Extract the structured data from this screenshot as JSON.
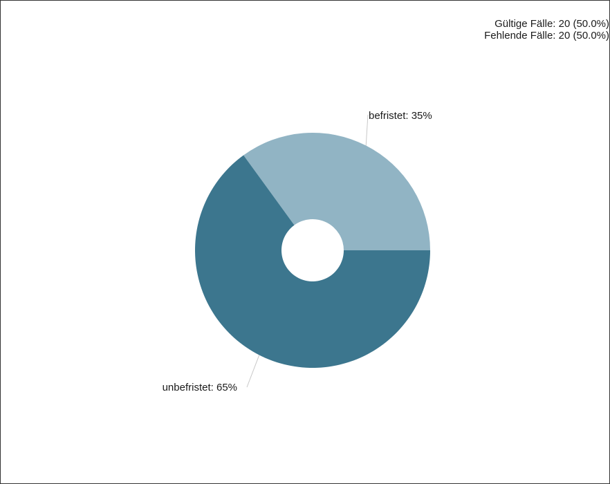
{
  "stats": {
    "valid": "Gültige Fälle: 20 (50.0%)",
    "missing": "Fehlende Fälle: 20 (50.0%)"
  },
  "chart_data": {
    "type": "pie",
    "donut": true,
    "slices": [
      {
        "label": "befristet",
        "percent": 35,
        "text": "befristet: 35%",
        "color": "#91b4c4"
      },
      {
        "label": "unbefristet",
        "percent": 65,
        "text": "unbefristet: 65%",
        "color": "#3c768e"
      }
    ],
    "leader_line_color": "#c8c8c8"
  }
}
